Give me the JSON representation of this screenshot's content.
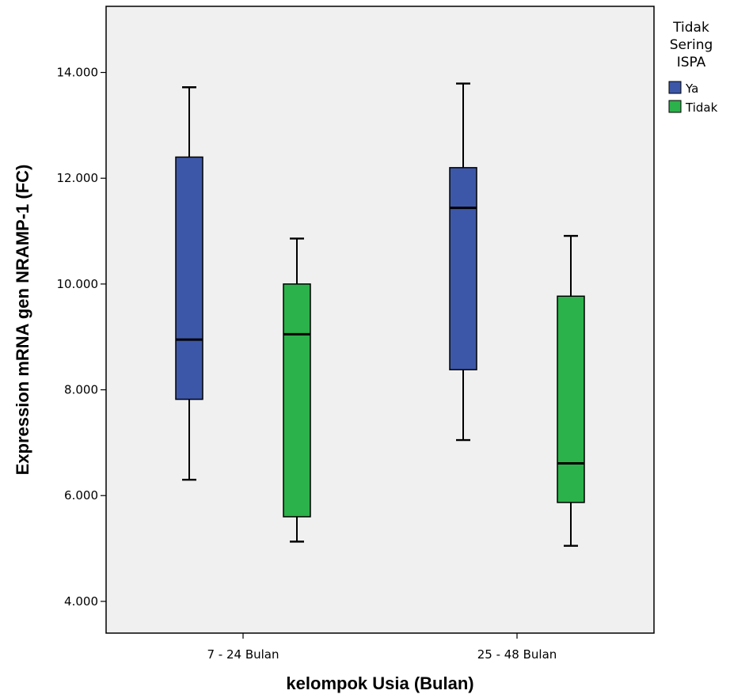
{
  "chart_data": {
    "type": "boxplot",
    "xlabel": "kelompok Usia (Bulan)",
    "ylabel": "Expression mRNA gen NRAMP-1 (FC)",
    "ylim": [
      3.4,
      15.25
    ],
    "yticks": [
      {
        "value": 4,
        "label": "4.000"
      },
      {
        "value": 6,
        "label": "6.000"
      },
      {
        "value": 8,
        "label": "8.000"
      },
      {
        "value": 10,
        "label": "10.000"
      },
      {
        "value": 12,
        "label": "12.000"
      },
      {
        "value": 14,
        "label": "14.000"
      }
    ],
    "categories": [
      "7 - 24 Bulan",
      "25 - 48 Bulan"
    ],
    "legend": {
      "title_lines": [
        "Tidak",
        "Sering",
        "ISPA"
      ],
      "position": "right"
    },
    "series": [
      {
        "name": "Ya",
        "color": "#3d57a8",
        "boxes": [
          {
            "min": 6.3,
            "q1": 7.82,
            "median": 8.95,
            "q3": 12.4,
            "max": 13.72
          },
          {
            "min": 7.05,
            "q1": 8.38,
            "median": 11.44,
            "q3": 12.2,
            "max": 13.79
          }
        ]
      },
      {
        "name": "Tidak",
        "color": "#2bb24a",
        "boxes": [
          {
            "min": 5.13,
            "q1": 5.6,
            "median": 9.05,
            "q3": 10.0,
            "max": 10.86
          },
          {
            "min": 5.05,
            "q1": 5.87,
            "median": 6.61,
            "q3": 9.77,
            "max": 10.91
          }
        ]
      }
    ]
  }
}
